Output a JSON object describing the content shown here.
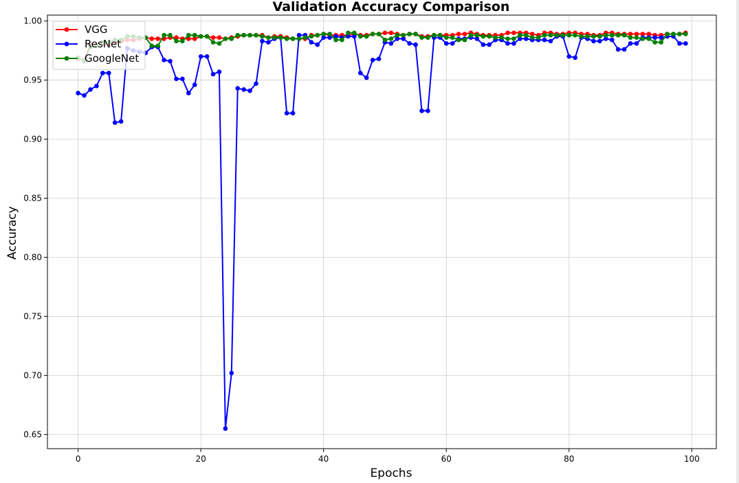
{
  "chart_data": {
    "type": "line",
    "title": "Validation Accuracy Comparison",
    "xlabel": "Epochs",
    "ylabel": "Accuracy",
    "xlim": [
      -5,
      104
    ],
    "ylim": [
      0.638,
      1.005
    ],
    "xticks": [
      0,
      20,
      40,
      60,
      80,
      100
    ],
    "yticks": [
      0.65,
      0.7,
      0.75,
      0.8,
      0.85,
      0.9,
      0.95,
      1.0
    ],
    "xtick_labels": [
      "0",
      "20",
      "40",
      "60",
      "80",
      "100"
    ],
    "ytick_labels": [
      "0.65",
      "0.70",
      "0.75",
      "0.80",
      "0.85",
      "0.90",
      "0.95",
      "1.00"
    ],
    "grid": true,
    "legend": "top-left",
    "series": [
      {
        "name": "VGG",
        "color": "#ff0000",
        "values": [
          0.968,
          0.967,
          0.98,
          0.98,
          0.981,
          0.98,
          0.982,
          0.983,
          0.984,
          0.984,
          0.985,
          0.986,
          0.985,
          0.985,
          0.985,
          0.986,
          0.986,
          0.985,
          0.985,
          0.985,
          0.987,
          0.987,
          0.986,
          0.986,
          0.985,
          0.986,
          0.987,
          0.988,
          0.988,
          0.988,
          0.988,
          0.986,
          0.987,
          0.987,
          0.986,
          0.985,
          0.985,
          0.985,
          0.988,
          0.988,
          0.989,
          0.988,
          0.988,
          0.988,
          0.988,
          0.989,
          0.988,
          0.988,
          0.989,
          0.989,
          0.99,
          0.99,
          0.989,
          0.988,
          0.989,
          0.989,
          0.987,
          0.987,
          0.988,
          0.988,
          0.988,
          0.988,
          0.989,
          0.989,
          0.99,
          0.989,
          0.988,
          0.988,
          0.988,
          0.988,
          0.99,
          0.99,
          0.99,
          0.99,
          0.989,
          0.988,
          0.99,
          0.99,
          0.989,
          0.989,
          0.99,
          0.99,
          0.989,
          0.989,
          0.988,
          0.988,
          0.99,
          0.99,
          0.989,
          0.989,
          0.989,
          0.989,
          0.989,
          0.989,
          0.988,
          0.988,
          0.989,
          0.989,
          0.989,
          0.99
        ]
      },
      {
        "name": "ResNet",
        "color": "#0000ff",
        "values": [
          0.939,
          0.937,
          0.942,
          0.945,
          0.956,
          0.956,
          0.914,
          0.915,
          0.977,
          0.975,
          0.974,
          0.973,
          0.978,
          0.978,
          0.967,
          0.966,
          0.951,
          0.951,
          0.939,
          0.946,
          0.97,
          0.97,
          0.955,
          0.957,
          0.655,
          0.702,
          0.943,
          0.942,
          0.941,
          0.947,
          0.983,
          0.982,
          0.985,
          0.986,
          0.922,
          0.922,
          0.988,
          0.988,
          0.982,
          0.98,
          0.986,
          0.986,
          0.987,
          0.986,
          0.987,
          0.987,
          0.956,
          0.952,
          0.967,
          0.968,
          0.982,
          0.981,
          0.985,
          0.985,
          0.981,
          0.98,
          0.924,
          0.924,
          0.986,
          0.986,
          0.981,
          0.981,
          0.985,
          0.985,
          0.986,
          0.985,
          0.98,
          0.98,
          0.984,
          0.984,
          0.981,
          0.981,
          0.985,
          0.985,
          0.984,
          0.984,
          0.984,
          0.983,
          0.987,
          0.987,
          0.97,
          0.969,
          0.986,
          0.985,
          0.983,
          0.983,
          0.985,
          0.984,
          0.976,
          0.976,
          0.981,
          0.981,
          0.986,
          0.986,
          0.986,
          0.986,
          0.987,
          0.987,
          0.981,
          0.981
        ]
      },
      {
        "name": "GoogleNet",
        "color": "#008000",
        "values": [
          0.969,
          0.966,
          0.978,
          0.979,
          0.982,
          0.982,
          0.984,
          0.984,
          0.987,
          0.987,
          0.986,
          0.986,
          0.979,
          0.979,
          0.988,
          0.988,
          0.983,
          0.983,
          0.988,
          0.988,
          0.987,
          0.987,
          0.982,
          0.981,
          0.985,
          0.985,
          0.988,
          0.988,
          0.988,
          0.988,
          0.987,
          0.986,
          0.986,
          0.986,
          0.985,
          0.985,
          0.985,
          0.986,
          0.987,
          0.988,
          0.989,
          0.989,
          0.984,
          0.984,
          0.99,
          0.99,
          0.987,
          0.987,
          0.989,
          0.989,
          0.984,
          0.985,
          0.988,
          0.988,
          0.989,
          0.989,
          0.986,
          0.986,
          0.988,
          0.988,
          0.986,
          0.986,
          0.984,
          0.984,
          0.988,
          0.988,
          0.987,
          0.987,
          0.986,
          0.986,
          0.985,
          0.985,
          0.988,
          0.988,
          0.986,
          0.986,
          0.988,
          0.988,
          0.988,
          0.988,
          0.988,
          0.988,
          0.987,
          0.987,
          0.987,
          0.987,
          0.988,
          0.988,
          0.988,
          0.988,
          0.986,
          0.986,
          0.985,
          0.985,
          0.982,
          0.982,
          0.989,
          0.989,
          0.989,
          0.989
        ]
      }
    ]
  }
}
